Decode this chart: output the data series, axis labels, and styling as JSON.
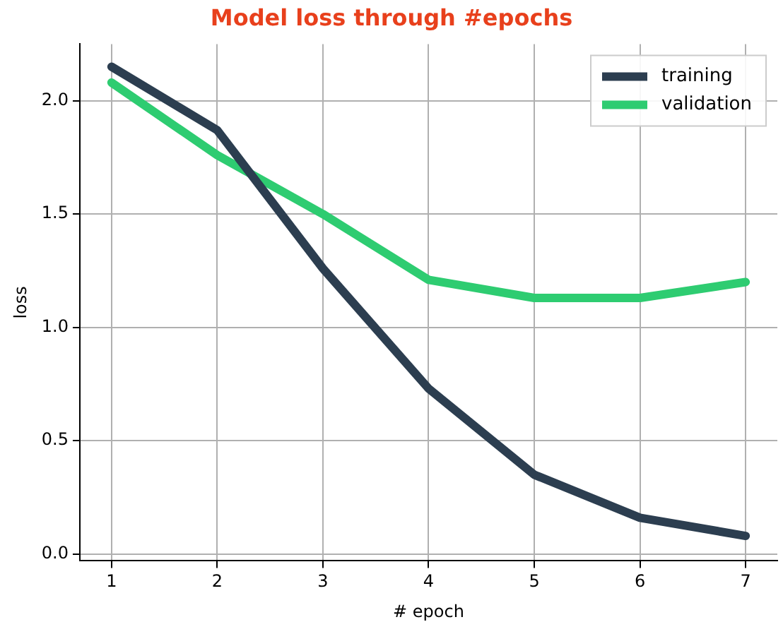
{
  "chart_data": {
    "type": "line",
    "title": "Model loss through #epochs",
    "xlabel": "# epoch",
    "ylabel": "loss",
    "x": [
      1,
      2,
      3,
      4,
      5,
      6,
      7
    ],
    "series": [
      {
        "name": "training",
        "color": "#2c3e50",
        "values": [
          2.15,
          1.87,
          1.26,
          0.73,
          0.35,
          0.16,
          0.08
        ]
      },
      {
        "name": "validation",
        "color": "#2ecc71",
        "values": [
          2.08,
          1.76,
          1.5,
          1.21,
          1.13,
          1.13,
          1.2
        ]
      }
    ],
    "xlim": [
      0.7,
      7.3
    ],
    "xticks": [
      1,
      2,
      3,
      4,
      5,
      6,
      7
    ],
    "ylim": [
      -0.03,
      2.25
    ],
    "yticks": [
      {
        "value": 0,
        "label": "0.0"
      },
      {
        "value": 0.5,
        "label": "0.5"
      },
      {
        "value": 1,
        "label": "1.0"
      },
      {
        "value": 1.5,
        "label": "1.5"
      },
      {
        "value": 2,
        "label": "2.0"
      }
    ],
    "grid": true,
    "legend": "top right",
    "marker": "none",
    "line_style": "solid"
  }
}
